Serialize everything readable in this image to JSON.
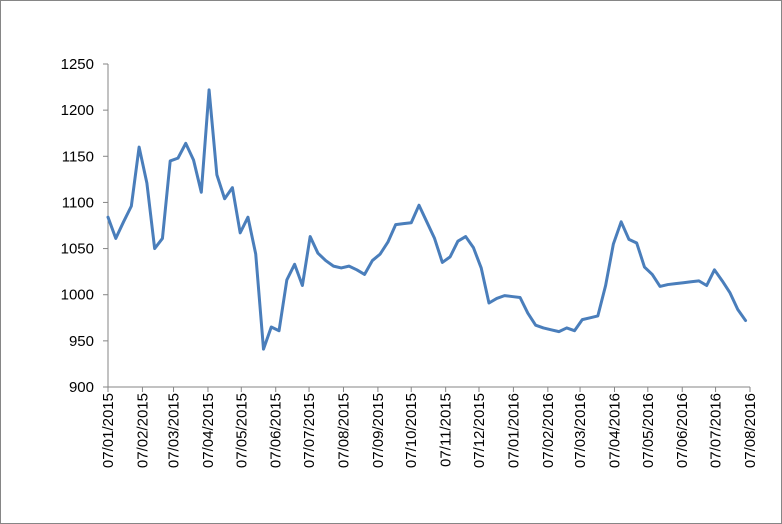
{
  "chart_data": {
    "type": "line",
    "x": [
      "2015-01-07",
      "2015-01-14",
      "2015-01-21",
      "2015-01-28",
      "2015-02-04",
      "2015-02-11",
      "2015-02-18",
      "2015-02-25",
      "2015-03-04",
      "2015-03-11",
      "2015-03-18",
      "2015-03-25",
      "2015-04-01",
      "2015-04-08",
      "2015-04-15",
      "2015-04-22",
      "2015-04-29",
      "2015-05-06",
      "2015-05-13",
      "2015-05-20",
      "2015-05-27",
      "2015-06-03",
      "2015-06-10",
      "2015-06-17",
      "2015-06-24",
      "2015-07-01",
      "2015-07-08",
      "2015-07-15",
      "2015-07-22",
      "2015-07-29",
      "2015-08-05",
      "2015-08-12",
      "2015-08-19",
      "2015-08-26",
      "2015-09-02",
      "2015-09-09",
      "2015-09-16",
      "2015-09-23",
      "2015-09-30",
      "2015-10-07",
      "2015-10-14",
      "2015-10-21",
      "2015-10-28",
      "2015-11-04",
      "2015-11-11",
      "2015-11-18",
      "2015-11-25",
      "2015-12-02",
      "2015-12-09",
      "2015-12-16",
      "2015-12-23",
      "2015-12-30",
      "2016-01-06",
      "2016-01-13",
      "2016-01-20",
      "2016-01-27",
      "2016-02-03",
      "2016-02-10",
      "2016-02-17",
      "2016-02-24",
      "2016-03-02",
      "2016-03-09",
      "2016-03-16",
      "2016-03-23",
      "2016-03-30",
      "2016-04-06",
      "2016-04-13",
      "2016-04-20",
      "2016-04-27",
      "2016-05-04",
      "2016-05-11",
      "2016-05-18",
      "2016-05-25",
      "2016-06-01",
      "2016-06-08",
      "2016-06-15",
      "2016-06-22",
      "2016-06-29",
      "2016-07-06",
      "2016-07-13",
      "2016-07-20",
      "2016-07-27",
      "2016-08-03"
    ],
    "series": [
      {
        "color": "#4a7ebb",
        "values": [
          1084,
          1061,
          1079,
          1096,
          1160,
          1121,
          1050,
          1061,
          1145,
          1148,
          1164,
          1146,
          1111,
          1222,
          1130,
          1104,
          1116,
          1067,
          1084,
          1044,
          941,
          965,
          961,
          1016,
          1033,
          1010,
          1063,
          1045,
          1037,
          1031,
          1029,
          1031,
          1027,
          1022,
          1037,
          1044,
          1057,
          1076,
          1077,
          1078,
          1097,
          1079,
          1061,
          1035,
          1041,
          1058,
          1063,
          1051,
          1029,
          991,
          996,
          999,
          998,
          997,
          980,
          967,
          964,
          962,
          960,
          964,
          961,
          973,
          975,
          977,
          1010,
          1055,
          1079,
          1060,
          1056,
          1030,
          1022,
          1009,
          1011,
          1012,
          1013,
          1014,
          1015,
          1010,
          1027,
          1015,
          1002,
          984,
          972
        ]
      }
    ],
    "xlim": [
      "2015-01-07",
      "2016-08-07"
    ],
    "xticks": [
      {
        "value": "2015-01-07",
        "label": "07/01/2015"
      },
      {
        "value": "2015-02-07",
        "label": "07/02/2015"
      },
      {
        "value": "2015-03-07",
        "label": "07/03/2015"
      },
      {
        "value": "2015-04-07",
        "label": "07/04/2015"
      },
      {
        "value": "2015-05-07",
        "label": "07/05/2015"
      },
      {
        "value": "2015-06-07",
        "label": "07/06/2015"
      },
      {
        "value": "2015-07-07",
        "label": "07/07/2015"
      },
      {
        "value": "2015-08-07",
        "label": "07/08/2015"
      },
      {
        "value": "2015-09-07",
        "label": "07/09/2015"
      },
      {
        "value": "2015-10-07",
        "label": "07/10/2015"
      },
      {
        "value": "2015-11-07",
        "label": "07/11/2015"
      },
      {
        "value": "2015-12-07",
        "label": "07/12/2015"
      },
      {
        "value": "2016-01-07",
        "label": "07/01/2016"
      },
      {
        "value": "2016-02-07",
        "label": "07/02/2016"
      },
      {
        "value": "2016-03-07",
        "label": "07/03/2016"
      },
      {
        "value": "2016-04-07",
        "label": "07/04/2016"
      },
      {
        "value": "2016-05-07",
        "label": "07/05/2016"
      },
      {
        "value": "2016-06-07",
        "label": "07/06/2016"
      },
      {
        "value": "2016-07-07",
        "label": "07/07/2016"
      },
      {
        "value": "2016-08-07",
        "label": "07/08/2016"
      }
    ],
    "ylim": [
      900,
      1250
    ],
    "yticks": [
      900,
      950,
      1000,
      1050,
      1100,
      1150,
      1200,
      1250
    ],
    "grid": false
  }
}
